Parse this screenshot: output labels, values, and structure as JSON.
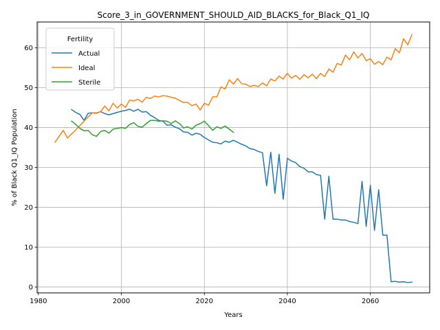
{
  "chart_data": {
    "type": "line",
    "title": "Score_3_in_GOVERNMENT_SHOULD_AID_BLACKS_for_Black_Q1_IQ",
    "xlabel": "Years",
    "ylabel": "% of Black Q1_IQ Population",
    "xlim": [
      1979.7,
      2074.3
    ],
    "ylim": [
      -1.5,
      66.5
    ],
    "xticks": [
      1980,
      2000,
      2020,
      2040,
      2060
    ],
    "yticks": [
      0,
      10,
      20,
      30,
      40,
      50,
      60
    ],
    "grid": true,
    "legend": {
      "title": "Fertility",
      "placement": "top-left"
    },
    "series": [
      {
        "name": "Actual",
        "color": "#1f77b4",
        "x": [
          1988,
          1989,
          1990,
          1991,
          1992,
          1993,
          1994,
          1995,
          1996,
          1997,
          1998,
          1999,
          2000,
          2001,
          2002,
          2003,
          2004,
          2005,
          2006,
          2007,
          2008,
          2009,
          2010,
          2011,
          2012,
          2013,
          2014,
          2015,
          2016,
          2017,
          2018,
          2019,
          2020,
          2021,
          2022,
          2023,
          2024,
          2025,
          2026,
          2027,
          2028,
          2029,
          2030,
          2031,
          2032,
          2033,
          2034,
          2035,
          2036,
          2037,
          2038,
          2039,
          2040,
          2041,
          2042,
          2043,
          2044,
          2045,
          2046,
          2047,
          2048,
          2049,
          2050,
          2051,
          2052,
          2053,
          2054,
          2055,
          2056,
          2057,
          2058,
          2059,
          2060,
          2061,
          2062,
          2063,
          2064,
          2065,
          2066,
          2067,
          2068,
          2069,
          2070
        ],
        "y": [
          44.5,
          43.8,
          43.3,
          41.8,
          43.6,
          43.7,
          43.6,
          44.0,
          43.5,
          43.2,
          43.5,
          43.8,
          44.1,
          44.3,
          44.6,
          44.1,
          44.6,
          43.9,
          44.0,
          43.1,
          42.5,
          41.8,
          41.6,
          40.6,
          40.7,
          40.1,
          39.7,
          38.9,
          38.8,
          38.1,
          38.6,
          38.3,
          37.5,
          36.9,
          36.3,
          36.2,
          35.9,
          36.6,
          36.3,
          36.8,
          36.3,
          35.8,
          35.4,
          34.7,
          34.5,
          34.0,
          33.7,
          25.4,
          33.8,
          23.5,
          33.3,
          22.0,
          32.3,
          31.6,
          31.2,
          30.2,
          29.8,
          28.9,
          28.9,
          28.2,
          28.0,
          17.0,
          27.8,
          17.0,
          17.0,
          16.8,
          16.8,
          16.4,
          16.2,
          15.9,
          26.5,
          15.2,
          25.5,
          14.2,
          24.4,
          13.0,
          13.0,
          1.3,
          1.4,
          1.2,
          1.3,
          1.1,
          1.2
        ]
      },
      {
        "name": "Ideal",
        "color": "#ff7f0e",
        "x": [
          1984,
          1985,
          1986,
          1987,
          1988,
          1989,
          1990,
          1991,
          1992,
          1993,
          1994,
          1995,
          1996,
          1997,
          1998,
          1999,
          2000,
          2001,
          2002,
          2003,
          2004,
          2005,
          2006,
          2007,
          2008,
          2009,
          2010,
          2011,
          2012,
          2013,
          2014,
          2015,
          2016,
          2017,
          2018,
          2019,
          2020,
          2021,
          2022,
          2023,
          2024,
          2025,
          2026,
          2027,
          2028,
          2029,
          2030,
          2031,
          2032,
          2033,
          2034,
          2035,
          2036,
          2037,
          2038,
          2039,
          2040,
          2041,
          2042,
          2043,
          2044,
          2045,
          2046,
          2047,
          2048,
          2049,
          2050,
          2051,
          2052,
          2053,
          2054,
          2055,
          2056,
          2057,
          2058,
          2059,
          2060,
          2061,
          2062,
          2063,
          2064,
          2065,
          2066,
          2067,
          2068,
          2069,
          2070
        ],
        "y": [
          36.3,
          37.8,
          39.3,
          37.4,
          38.4,
          39.4,
          40.5,
          41.6,
          42.7,
          43.7,
          43.7,
          44.0,
          45.4,
          44.2,
          46.1,
          44.9,
          45.9,
          45.1,
          46.9,
          46.7,
          47.1,
          46.4,
          47.6,
          47.3,
          47.9,
          47.7,
          48.0,
          47.9,
          47.6,
          47.4,
          46.8,
          46.3,
          46.3,
          45.5,
          45.9,
          44.4,
          46.1,
          45.6,
          47.7,
          47.7,
          50.2,
          49.7,
          52.0,
          50.9,
          52.3,
          51.0,
          50.9,
          50.3,
          50.6,
          50.3,
          51.2,
          50.5,
          52.2,
          51.7,
          52.9,
          52.2,
          53.6,
          52.4,
          53.1,
          52.1,
          53.3,
          52.5,
          53.4,
          52.3,
          53.6,
          52.8,
          54.7,
          53.9,
          56.1,
          55.7,
          58.2,
          57.0,
          59.0,
          57.5,
          58.6,
          56.8,
          57.3,
          55.9,
          56.6,
          55.8,
          57.7,
          57.0,
          59.8,
          58.8,
          62.3,
          60.8,
          63.3
        ]
      },
      {
        "name": "Sterile",
        "color": "#2ca02c",
        "x": [
          1988,
          1989,
          1990,
          1991,
          1992,
          1993,
          1994,
          1995,
          1996,
          1997,
          1998,
          1999,
          2000,
          2001,
          2002,
          2003,
          2004,
          2005,
          2006,
          2007,
          2008,
          2009,
          2010,
          2011,
          2012,
          2013,
          2014,
          2015,
          2016,
          2017,
          2018,
          2019,
          2020,
          2021,
          2022,
          2023,
          2024,
          2025,
          2026,
          2027
        ],
        "y": [
          41.6,
          40.8,
          39.8,
          39.2,
          39.3,
          38.2,
          37.8,
          39.0,
          39.3,
          38.6,
          39.6,
          39.8,
          40.0,
          39.8,
          40.8,
          41.2,
          40.3,
          40.1,
          41.0,
          41.8,
          41.8,
          41.6,
          41.7,
          41.6,
          41.0,
          41.7,
          41.0,
          39.9,
          40.2,
          39.6,
          40.6,
          41.0,
          41.6,
          40.5,
          39.3,
          40.2,
          39.8,
          40.4,
          39.6,
          38.8
        ]
      }
    ]
  }
}
